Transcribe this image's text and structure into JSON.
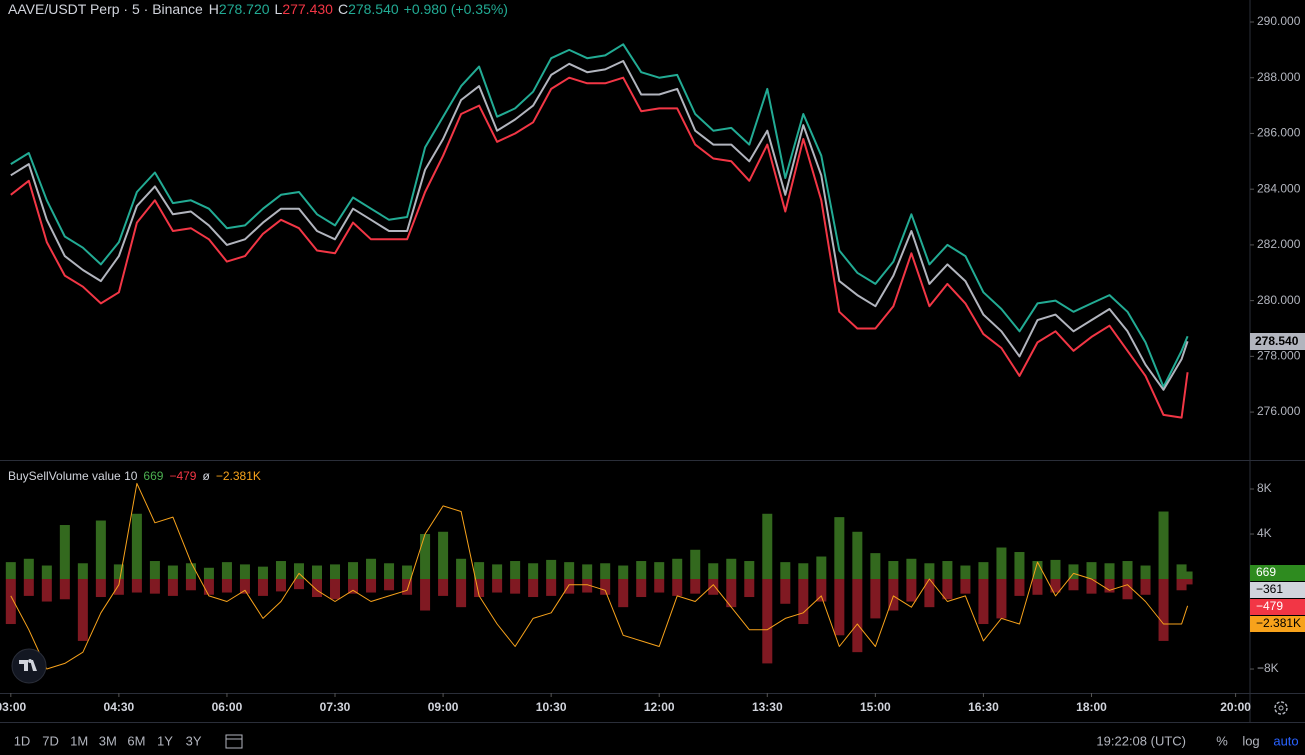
{
  "chart_data": [
    {
      "type": "line",
      "x": [
        180,
        195,
        210,
        225,
        240,
        255,
        270,
        285,
        300,
        315,
        330,
        345,
        360,
        375,
        390,
        405,
        420,
        435,
        450,
        465,
        480,
        495,
        510,
        525,
        540,
        555,
        570,
        585,
        600,
        615,
        630,
        645,
        660,
        675,
        690,
        705,
        720,
        735,
        750,
        765,
        780,
        795,
        810,
        825,
        840,
        855,
        870,
        885,
        900,
        915,
        930,
        945,
        960,
        975,
        990,
        1005,
        1020,
        1035,
        1050,
        1065,
        1080,
        1095,
        1110,
        1125,
        1140,
        1155,
        1160
      ],
      "xlim": [
        171,
        1212
      ],
      "ylim": [
        274.28,
        290.79
      ],
      "yticks": [
        {
          "value": 276,
          "label": "276.000"
        },
        {
          "value": 278,
          "label": "278.000"
        },
        {
          "value": 280,
          "label": "280.000"
        },
        {
          "value": 282,
          "label": "282.000"
        },
        {
          "value": 284,
          "label": "284.000"
        },
        {
          "value": 286,
          "label": "286.000"
        },
        {
          "value": 288,
          "label": "288.000"
        },
        {
          "value": 290,
          "label": "290.000"
        }
      ],
      "series": [
        {
          "name": "H",
          "color": "#22ab94",
          "values": [
            284.9,
            285.3,
            283.6,
            282.3,
            281.9,
            281.3,
            282.1,
            283.9,
            284.6,
            283.5,
            283.6,
            283.3,
            282.6,
            282.7,
            283.3,
            283.8,
            283.9,
            283.1,
            282.7,
            283.7,
            283.3,
            282.9,
            283.0,
            285.5,
            286.6,
            287.7,
            288.4,
            286.6,
            286.9,
            287.5,
            288.7,
            289.0,
            288.7,
            288.8,
            289.2,
            288.2,
            288.0,
            288.1,
            286.7,
            286.1,
            286.2,
            285.6,
            287.6,
            284.4,
            286.7,
            285.2,
            281.8,
            281.0,
            280.6,
            281.4,
            283.1,
            281.3,
            282.0,
            281.6,
            280.3,
            279.7,
            278.9,
            279.9,
            280.0,
            279.6,
            279.9,
            280.2,
            279.6,
            278.5,
            276.9,
            278.2,
            278.72
          ]
        },
        {
          "name": "L",
          "color": "#f23645",
          "values": [
            283.8,
            284.3,
            282.1,
            280.9,
            280.5,
            279.9,
            280.3,
            282.8,
            283.6,
            282.5,
            282.6,
            282.2,
            281.4,
            281.6,
            282.4,
            282.9,
            282.6,
            281.8,
            281.7,
            282.8,
            282.2,
            282.2,
            282.2,
            283.9,
            285.2,
            286.7,
            287.0,
            285.7,
            286.0,
            286.4,
            287.6,
            288.0,
            287.8,
            287.8,
            288.0,
            286.8,
            286.9,
            286.9,
            285.6,
            285.1,
            285.0,
            284.3,
            285.6,
            283.2,
            285.8,
            283.6,
            279.6,
            279.0,
            279.0,
            279.8,
            281.7,
            279.8,
            280.6,
            279.9,
            278.8,
            278.3,
            277.3,
            278.5,
            278.9,
            278.2,
            278.7,
            279.1,
            278.2,
            277.3,
            275.9,
            275.8,
            277.43
          ]
        },
        {
          "name": "C",
          "color": "#b2b5be",
          "values": [
            284.5,
            284.9,
            282.9,
            281.6,
            281.1,
            280.7,
            281.6,
            283.4,
            284.1,
            283.1,
            283.2,
            282.7,
            282.0,
            282.2,
            282.8,
            283.3,
            283.3,
            282.5,
            282.2,
            283.3,
            282.9,
            282.5,
            282.5,
            284.7,
            285.8,
            287.2,
            287.7,
            286.1,
            286.5,
            287.0,
            288.1,
            288.5,
            288.2,
            288.3,
            288.6,
            287.4,
            287.4,
            287.6,
            286.1,
            285.6,
            285.6,
            285.0,
            286.1,
            283.8,
            286.3,
            284.5,
            280.7,
            280.2,
            279.8,
            280.9,
            282.5,
            280.6,
            281.3,
            280.7,
            279.5,
            278.9,
            278.0,
            279.3,
            279.5,
            278.9,
            279.3,
            279.7,
            278.9,
            277.7,
            276.8,
            277.9,
            278.54
          ]
        }
      ]
    },
    {
      "type": "bar",
      "title": "BuySellVolume value 10",
      "x": [
        180,
        195,
        210,
        225,
        240,
        255,
        270,
        285,
        300,
        315,
        330,
        345,
        360,
        375,
        390,
        405,
        420,
        435,
        450,
        465,
        480,
        495,
        510,
        525,
        540,
        555,
        570,
        585,
        600,
        615,
        630,
        645,
        660,
        675,
        690,
        705,
        720,
        735,
        750,
        765,
        780,
        795,
        810,
        825,
        840,
        855,
        870,
        885,
        900,
        915,
        930,
        945,
        960,
        975,
        990,
        1005,
        1020,
        1035,
        1050,
        1065,
        1080,
        1095,
        1110,
        1125,
        1140,
        1155,
        1160
      ],
      "xlim": [
        171,
        1212
      ],
      "ylim": [
        -10130,
        10490
      ],
      "xticks": [
        {
          "value": 180,
          "label": "03:00"
        },
        {
          "value": 270,
          "label": "04:30"
        },
        {
          "value": 360,
          "label": "06:00"
        },
        {
          "value": 450,
          "label": "07:30"
        },
        {
          "value": 540,
          "label": "09:00"
        },
        {
          "value": 630,
          "label": "10:30"
        },
        {
          "value": 720,
          "label": "12:00"
        },
        {
          "value": 810,
          "label": "13:30"
        },
        {
          "value": 900,
          "label": "15:00"
        },
        {
          "value": 990,
          "label": "16:30"
        },
        {
          "value": 1080,
          "label": "18:00"
        },
        {
          "value": 1200,
          "label": "20:00"
        }
      ],
      "yticks": [
        {
          "value": 8000,
          "label": "8K"
        },
        {
          "value": 4000,
          "label": "4K"
        },
        {
          "value": -8000,
          "label": "−8K"
        }
      ],
      "series": [
        {
          "style": "bar",
          "color": "#33691e",
          "values": [
            1500,
            1800,
            1200,
            4800,
            1400,
            5200,
            1300,
            5800,
            1600,
            1200,
            1400,
            1000,
            1500,
            1300,
            1100,
            1600,
            1400,
            1200,
            1300,
            1500,
            1800,
            1400,
            1200,
            4000,
            4200,
            1800,
            1500,
            1300,
            1600,
            1400,
            1700,
            1500,
            1300,
            1400,
            1200,
            1600,
            1500,
            1800,
            2600,
            1400,
            1800,
            1600,
            5800,
            1500,
            1400,
            2000,
            5500,
            4200,
            2300,
            1600,
            1800,
            1400,
            1600,
            1200,
            1500,
            2800,
            2400,
            1600,
            1700,
            1300,
            1500,
            1400,
            1600,
            1200,
            6000,
            1300,
            669
          ]
        },
        {
          "style": "bar",
          "color": "#801922",
          "values": [
            -4000,
            -1500,
            -2000,
            -1800,
            -5500,
            -1600,
            -1400,
            -1200,
            -1300,
            -1500,
            -1000,
            -1400,
            -1200,
            -1300,
            -1500,
            -1100,
            -900,
            -1600,
            -1800,
            -1300,
            -1200,
            -1000,
            -1400,
            -2800,
            -1500,
            -2500,
            -1600,
            -1200,
            -1300,
            -1600,
            -1500,
            -1300,
            -1200,
            -1400,
            -2500,
            -1600,
            -1200,
            -1500,
            -1300,
            -1400,
            -2500,
            -1600,
            -7500,
            -2200,
            -4000,
            -2000,
            -5000,
            -6500,
            -3500,
            -2800,
            -2000,
            -2500,
            -1800,
            -1300,
            -4000,
            -3500,
            -1500,
            -1400,
            -1200,
            -1000,
            -1300,
            -1200,
            -1800,
            -1400,
            -5500,
            -1000,
            -479
          ]
        },
        {
          "style": "line",
          "color": "#f7a21b",
          "values": [
            -1500,
            -4500,
            -8000,
            -7500,
            -6500,
            -3000,
            -500,
            8500,
            5000,
            5500,
            1500,
            -1500,
            -2000,
            -1000,
            -3500,
            -2000,
            500,
            -1000,
            -2000,
            -1000,
            -2000,
            -1500,
            -1000,
            4000,
            6500,
            6000,
            -1500,
            -4000,
            -6000,
            -3500,
            -3000,
            -500,
            -500,
            -1000,
            -5000,
            -5500,
            -6000,
            -1500,
            -2000,
            -500,
            -2500,
            -4500,
            -4500,
            -3500,
            -3000,
            -1500,
            -6000,
            -4000,
            -6000,
            -1500,
            -2500,
            0,
            -2000,
            -1500,
            -5500,
            -3500,
            -4000,
            1500,
            -1500,
            500,
            0,
            -1000,
            -500,
            -2000,
            -4000,
            -4000,
            -2381
          ]
        }
      ]
    }
  ],
  "ui": {
    "legend": {
      "symbol": "AAVE/USDT Perp · 5 · Binance",
      "high": "278.720",
      "low": "277.430",
      "close": "278.540",
      "change": "+0.980 (+0.35%)"
    },
    "volume_legend": {
      "buy": "669",
      "sell": "−479",
      "sep": "ø",
      "delta": "−2.381K"
    },
    "price_tag": "278.540",
    "volume_tags": [
      {
        "text": "669",
        "color": "#2e8b1f"
      },
      {
        "text": "−361",
        "color": "#d1d4dc"
      },
      {
        "text": "−479",
        "color": "#f23645"
      },
      {
        "text": "−2.381K",
        "color": "#f7a21b"
      }
    ],
    "toolbar": {
      "ranges": [
        "1D",
        "7D",
        "1M",
        "3M",
        "6M",
        "1Y",
        "3Y"
      ],
      "clock": "19:22:08 (UTC)",
      "percent": "%",
      "log": "log",
      "auto": "auto"
    }
  }
}
